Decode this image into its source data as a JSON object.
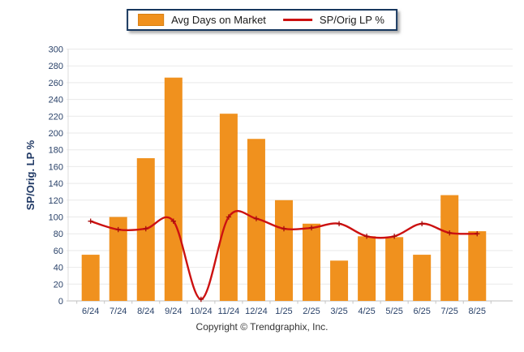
{
  "legend": {
    "items": [
      {
        "label": "Avg Days on Market",
        "type": "bar"
      },
      {
        "label": "SP/Orig LP %",
        "type": "line"
      }
    ]
  },
  "y_axis_title": "SP/Orig. LP %",
  "footer": {
    "copyright": "Copyright © Trendgraphix, Inc."
  },
  "colors": {
    "bar": "#F0911E",
    "bar_border": "#D87F12",
    "line": "#CC1111",
    "line_marker": "#A80D0D",
    "axis_text": "#2A4269",
    "axis_title": "#1F3864",
    "grid": "#E9E9E9",
    "baseline": "#BFBFBF",
    "legend_border": "#17375E",
    "copyright_text": "#333333"
  },
  "chart_data": {
    "type": "bar+line combo",
    "categories": [
      "6/24",
      "7/24",
      "8/24",
      "9/24",
      "10/24",
      "11/24",
      "12/24",
      "1/25",
      "2/25",
      "3/25",
      "4/25",
      "5/25",
      "6/25",
      "7/25",
      "8/25"
    ],
    "series": [
      {
        "name": "Avg Days on Market",
        "type": "bar",
        "color": "#F0911E",
        "values": [
          55,
          100,
          170,
          266,
          0,
          223,
          193,
          120,
          92,
          48,
          77,
          76,
          55,
          126,
          83
        ]
      },
      {
        "name": "SP/Orig LP %",
        "type": "line",
        "color": "#CC1111",
        "values": [
          95,
          85,
          86,
          95,
          0,
          100,
          98,
          86,
          87,
          92,
          77,
          77,
          92,
          81,
          80
        ]
      }
    ],
    "title": "",
    "xlabel": "",
    "ylabel": "SP/Orig. LP %",
    "ylim": [
      0,
      300
    ],
    "y_ticks": [
      0,
      20,
      40,
      60,
      80,
      100,
      120,
      140,
      160,
      180,
      200,
      220,
      240,
      260,
      280,
      300
    ],
    "grid": true,
    "legend_position": "top"
  }
}
